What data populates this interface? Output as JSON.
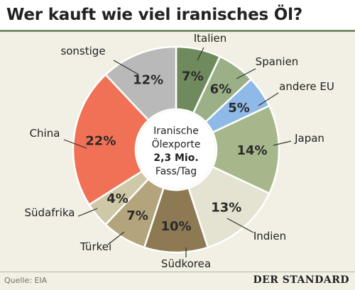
{
  "title": "Wer kauft wie viel iranisches Öl?",
  "center_label": {
    "line1": "Iranische",
    "line2": "Ölexporte",
    "line3": "2,3 Mio.",
    "line4": "Fass/Tag"
  },
  "footer": {
    "source": "Quelle: EIA",
    "brand": "DER STANDARD"
  },
  "chart_data": {
    "type": "pie",
    "title": "Wer kauft wie viel iranisches Öl?",
    "unit": "%",
    "slices": [
      {
        "label": "Italien",
        "value": 7,
        "text": "7%",
        "color": "#6f8a5c"
      },
      {
        "label": "Spanien",
        "value": 6,
        "text": "6%",
        "color": "#9bb087"
      },
      {
        "label": "andere EU",
        "value": 5,
        "text": "5%",
        "color": "#8fb9e6"
      },
      {
        "label": "Japan",
        "value": 14,
        "text": "14%",
        "color": "#a7b78c"
      },
      {
        "label": "Indien",
        "value": 13,
        "text": "13%",
        "color": "#e4e2d0"
      },
      {
        "label": "Südkorea",
        "value": 10,
        "text": "10%",
        "color": "#8e7a52"
      },
      {
        "label": "Türkei",
        "value": 7,
        "text": "7%",
        "color": "#b3a47c"
      },
      {
        "label": "Südafrika",
        "value": 4,
        "text": "4%",
        "color": "#cfc8a6"
      },
      {
        "label": "China",
        "value": 22,
        "text": "22%",
        "color": "#f07156"
      },
      {
        "label": "sonstige",
        "value": 12,
        "text": "12%",
        "color": "#b9b9b9"
      }
    ]
  }
}
